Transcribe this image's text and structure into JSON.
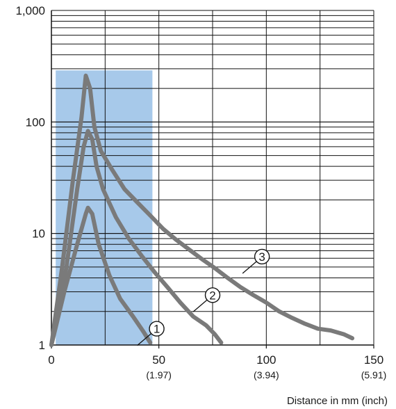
{
  "chart_data": {
    "type": "line",
    "title": "",
    "xlabel": "Distance in mm (inch)",
    "ylabel": "",
    "x_scale": "linear",
    "y_scale": "log",
    "xlim": [
      0,
      150
    ],
    "ylim": [
      1,
      1000
    ],
    "x_ticks": [
      {
        "value": 0,
        "label": "0",
        "sublabel": ""
      },
      {
        "value": 50,
        "label": "50",
        "sublabel": "(1.97)"
      },
      {
        "value": 100,
        "label": "100",
        "sublabel": "(3.94)"
      },
      {
        "value": 150,
        "label": "150",
        "sublabel": "(5.91)"
      }
    ],
    "y_ticks": [
      {
        "value": 1,
        "label": "1"
      },
      {
        "value": 10,
        "label": "10"
      },
      {
        "value": 100,
        "label": "100"
      },
      {
        "value": 1000,
        "label": "1,000"
      }
    ],
    "grid": true,
    "shaded_region": {
      "x": [
        2,
        47
      ],
      "y": [
        1,
        290
      ],
      "color": "#a7c9ea"
    },
    "line_color": "#7a7a7a",
    "series": [
      {
        "marker": "1",
        "label_at": {
          "x": 49,
          "y": 1.4
        },
        "x": [
          0,
          6,
          12,
          16,
          17,
          19,
          22,
          27,
          32,
          38,
          43,
          46
        ],
        "y": [
          1,
          3,
          8,
          15,
          17,
          15,
          8,
          4.2,
          2.6,
          1.8,
          1.3,
          1.05
        ]
      },
      {
        "marker": "2",
        "label_at": {
          "x": 75,
          "y": 2.8
        },
        "x": [
          0,
          7,
          12,
          15,
          17,
          19,
          21,
          24,
          30,
          36,
          42,
          48,
          54,
          60,
          66,
          72,
          76,
          79
        ],
        "y": [
          1,
          5,
          25,
          60,
          83,
          70,
          40,
          25,
          14,
          9,
          6.3,
          4.5,
          3.3,
          2.4,
          1.8,
          1.5,
          1.25,
          1.05
        ]
      },
      {
        "marker": "3",
        "label_at": {
          "x": 98,
          "y": 6.2
        },
        "x": [
          0,
          5,
          10,
          14,
          16,
          18,
          20,
          23,
          28,
          34,
          40,
          46,
          52,
          58,
          64,
          70,
          76,
          82,
          88,
          94,
          100,
          106,
          112,
          118,
          124,
          130,
          136,
          140
        ],
        "y": [
          1,
          5,
          30,
          110,
          260,
          200,
          90,
          55,
          38,
          25,
          19,
          14.5,
          11,
          8.8,
          7.2,
          5.9,
          4.9,
          4,
          3.3,
          2.8,
          2.4,
          2.0,
          1.75,
          1.55,
          1.4,
          1.35,
          1.25,
          1.15
        ]
      }
    ]
  }
}
